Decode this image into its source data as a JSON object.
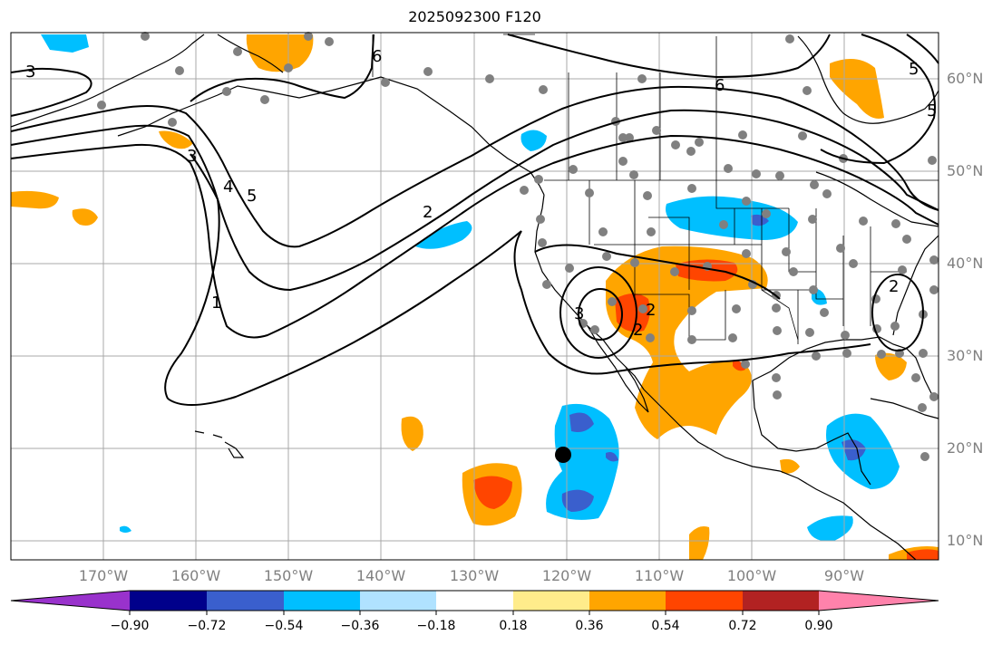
{
  "title": "2025092300 F120",
  "lat_labels": [
    "60°N",
    "50°N",
    "40°N",
    "30°N",
    "20°N",
    "10°N"
  ],
  "lon_labels": [
    "170°W",
    "160°W",
    "150°W",
    "140°W",
    "130°W",
    "120°W",
    "110°W",
    "100°W",
    "90°W"
  ],
  "colorbar": {
    "ticks": [
      "−0.90",
      "−0.72",
      "−0.54",
      "−0.36",
      "−0.18",
      "0.18",
      "0.36",
      "0.54",
      "0.72",
      "0.90"
    ],
    "colors": [
      "#9932cc",
      "#00008b",
      "#3a5fcd",
      "#00bfff",
      "#b0e2ff",
      "#ffffff",
      "#ffec8b",
      "#ffa500",
      "#ff4500",
      "#b22222",
      "#ff82ab"
    ]
  },
  "contour_labels": [
    "3",
    "6",
    "6",
    "5",
    "3",
    "4",
    "5",
    "2",
    "1",
    "2",
    "3",
    "2",
    "2",
    "5"
  ],
  "colors": {
    "grid": "#a9a9a9",
    "land_line": "#000000",
    "contour": "#000000",
    "station": "#808080",
    "marker": "#000000"
  }
}
